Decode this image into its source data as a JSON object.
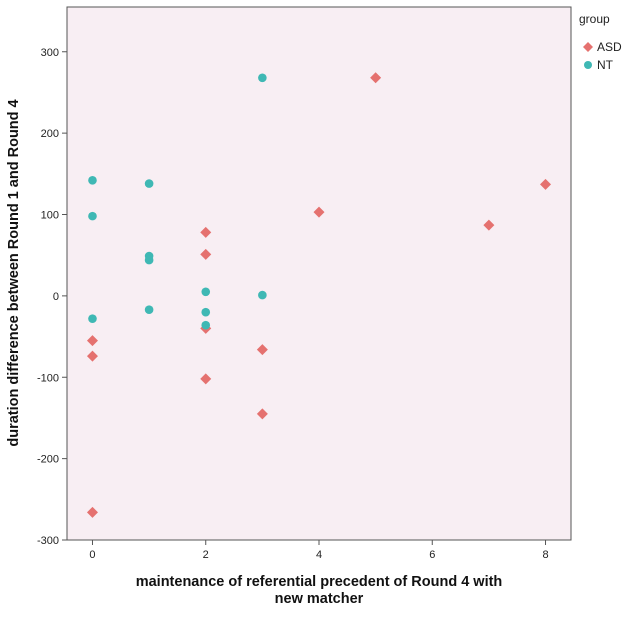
{
  "chart_data": {
    "type": "scatter",
    "title": "",
    "xlabel_lines": [
      "maintenance of referential precedent of Round 4 with",
      "new matcher"
    ],
    "ylabel": "duration difference between Round 1 and Round 4",
    "xlim": [
      -0.45,
      8.45
    ],
    "ylim": [
      -300,
      355
    ],
    "x_ticks": [
      0,
      2,
      4,
      6,
      8
    ],
    "y_ticks": [
      -300,
      -200,
      -100,
      0,
      100,
      200,
      300
    ],
    "grid": false,
    "plot_background": "#f8eef3",
    "legend": {
      "title": "group",
      "placement": "right"
    },
    "series": [
      {
        "name": "ASD",
        "marker": "diamond",
        "color": "#e5716f",
        "points": [
          [
            0,
            -55
          ],
          [
            0,
            -74
          ],
          [
            0,
            -266
          ],
          [
            2,
            78
          ],
          [
            2,
            51
          ],
          [
            2,
            -40
          ],
          [
            2,
            -102
          ],
          [
            3,
            -66
          ],
          [
            3,
            -145
          ],
          [
            4,
            103
          ],
          [
            5,
            268
          ],
          [
            7,
            87
          ],
          [
            8,
            137
          ]
        ]
      },
      {
        "name": "NT",
        "marker": "circle",
        "color": "#3fb8b4",
        "points": [
          [
            0,
            142
          ],
          [
            0,
            98
          ],
          [
            0,
            -28
          ],
          [
            1,
            138
          ],
          [
            1,
            49
          ],
          [
            1,
            44
          ],
          [
            1,
            -17
          ],
          [
            2,
            5
          ],
          [
            2,
            -20
          ],
          [
            2,
            -36
          ],
          [
            3,
            268
          ],
          [
            3,
            1
          ]
        ]
      }
    ]
  }
}
